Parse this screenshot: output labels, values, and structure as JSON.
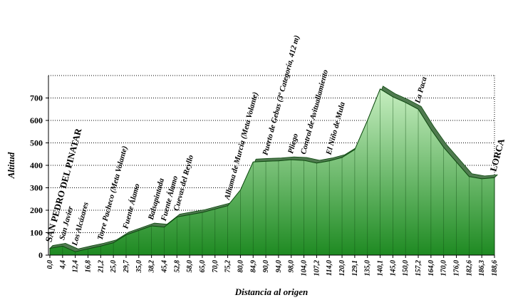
{
  "chart_data": {
    "type": "area",
    "title": "",
    "xlabel": "Distancia al origen",
    "ylabel": "Altitud",
    "ylim": [
      0,
      800
    ],
    "yticks": [
      0,
      100,
      200,
      300,
      400,
      500,
      600,
      700
    ],
    "grid": true,
    "x_labels": [
      "0,0",
      "4,4",
      "12,4",
      "16,8",
      "21,2",
      "25,0",
      "29,7",
      "35,0",
      "38,2",
      "45,4",
      "52,8",
      "58,0",
      "65,0",
      "70,0",
      "75,2",
      "80,0",
      "84,9",
      "90,0",
      "94,0",
      "98,0",
      "104,0",
      "107,2",
      "114,0",
      "120,0",
      "129,1",
      "135,0",
      "140,1",
      "145,0",
      "150,0",
      "157,2",
      "164,0",
      "170,0",
      "176,0",
      "182,6",
      "186,3",
      "188,6"
    ],
    "altitudes": [
      30,
      40,
      15,
      28,
      40,
      55,
      90,
      110,
      130,
      125,
      170,
      180,
      190,
      205,
      220,
      290,
      415,
      418,
      420,
      425,
      422,
      410,
      420,
      435,
      470,
      600,
      740,
      705,
      680,
      650,
      560,
      480,
      415,
      350,
      340,
      345
    ],
    "places": [
      {
        "name": "SAN PEDRO DEL PINATAR",
        "km": "0,0",
        "big": true
      },
      {
        "name": "San Javier",
        "km": "4,4",
        "big": false
      },
      {
        "name": "Los Alcázares",
        "km": "12,4",
        "big": false
      },
      {
        "name": "Torre Pacheco (Meta Volante)",
        "km": "21,2",
        "big": false
      },
      {
        "name": "Fuente Álamo",
        "km": "29,7",
        "big": false
      },
      {
        "name": "Balsapintada",
        "km": "38,2",
        "big": false
      },
      {
        "name": "Fuente Álamo",
        "km": "45,4",
        "big": false
      },
      {
        "name": "Cuevas del Reyllo",
        "km": "52,8",
        "big": false
      },
      {
        "name": "Alhama de Murcia (Meta Volante)",
        "km": "75,2",
        "big": false
      },
      {
        "name": "Puerto de Gebas (3ª Categoría, 412 m)",
        "km": "90,0",
        "big": false
      },
      {
        "name": "Pliego",
        "km": "98,0",
        "big": false
      },
      {
        "name": "Control de Avituallamiento",
        "km": "104,0",
        "big": false
      },
      {
        "name": "El Niño de Mula",
        "km": "114,0",
        "big": false
      },
      {
        "name": "La Paca",
        "km": "157,2",
        "big": false
      },
      {
        "name": "LORCA",
        "km": "188,6",
        "big": true
      }
    ],
    "colors": {
      "top": "#c6eec0",
      "bottom": "#1e8a22",
      "outline": "#0e4a10",
      "ridge": "#4f7a4f",
      "grid": "#000000"
    }
  }
}
